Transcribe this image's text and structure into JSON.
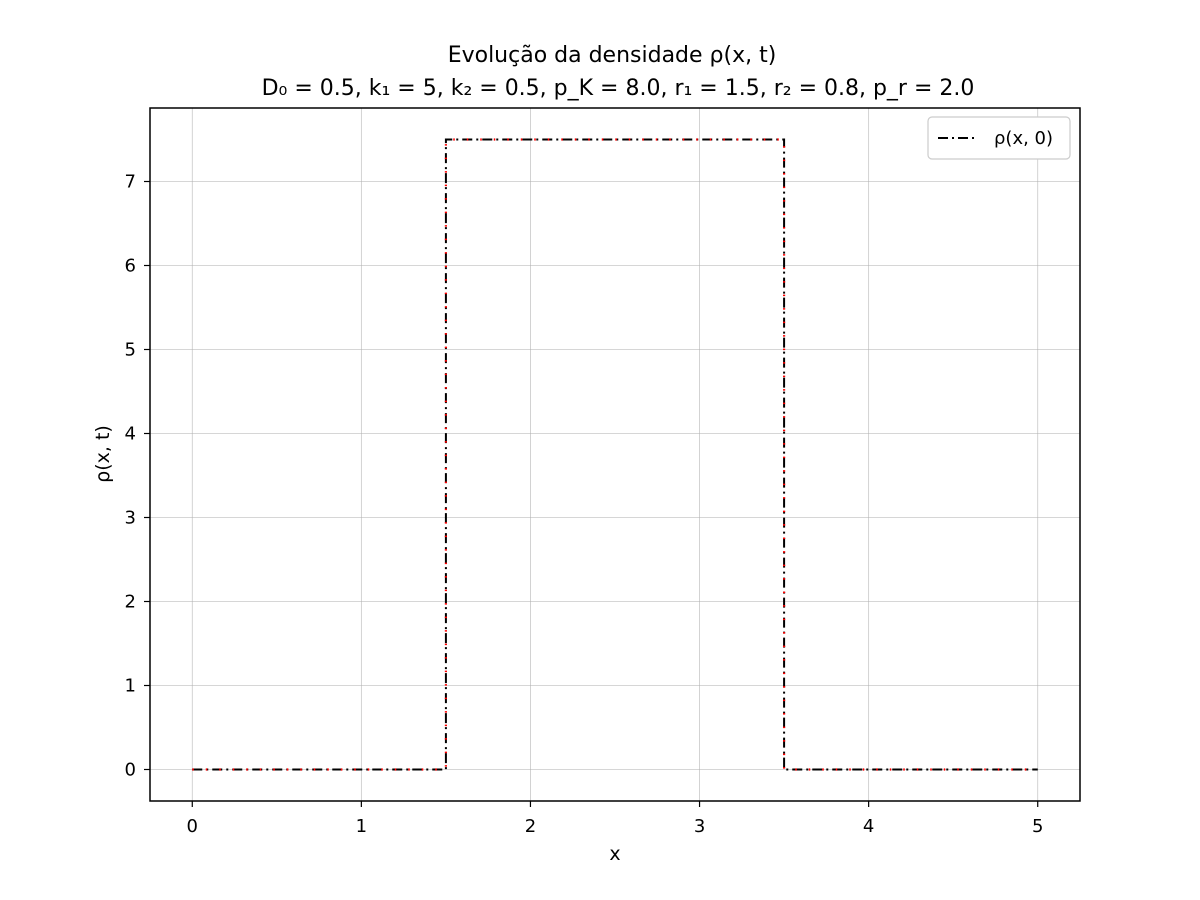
{
  "chart_data": {
    "type": "line",
    "title": "Evolução da densidade ρ(x, t)",
    "subtitle": "D₀ = 0.5, k₁ = 5, k₂ = 0.5,  p_K = 8.0, r₁ = 1.5, r₂ = 0.8, p_r = 2.0",
    "xlabel": "x",
    "ylabel": "ρ(x, t)",
    "xlim": [
      -0.25,
      5.25
    ],
    "ylim": [
      -0.375,
      7.875
    ],
    "xticks": [
      0,
      1,
      2,
      3,
      4,
      5
    ],
    "yticks": [
      0,
      1,
      2,
      3,
      4,
      5,
      6,
      7
    ],
    "grid": true,
    "legend_position": "top-right",
    "series": [
      {
        "name": "ρ(x, 0)",
        "style": "dash-dot",
        "color": "#000000",
        "x": [
          0,
          1.5,
          1.5,
          3.5,
          3.5,
          5
        ],
        "y": [
          0,
          0,
          7.5,
          7.5,
          0,
          0
        ]
      },
      {
        "style": "dotted",
        "color": "#ff0000",
        "x": [
          0,
          1.5,
          1.5,
          3.5,
          3.5,
          5
        ],
        "y": [
          0,
          0,
          7.5,
          7.5,
          0,
          0
        ]
      }
    ]
  }
}
